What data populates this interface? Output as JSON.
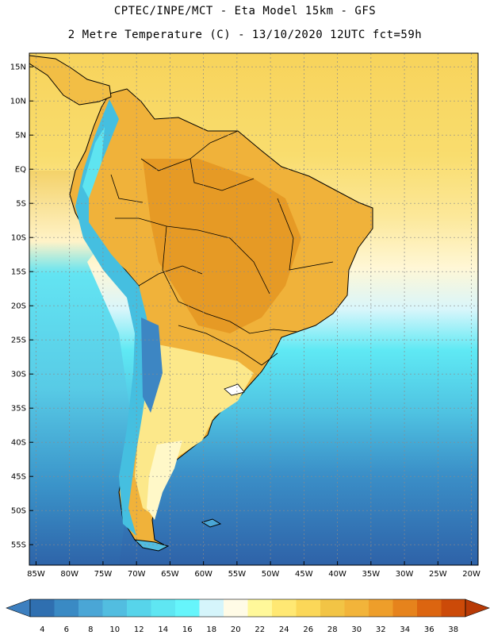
{
  "header": {
    "line1": "CPTEC/INPE/MCT  -   Eta Model 15km  -  GFS",
    "line2": "2 Metre Temperature (C) - 13/10/2020 12UTC fct=59h"
  },
  "axes": {
    "lat_labels": [
      "15N",
      "10N",
      "5N",
      "EQ",
      "5S",
      "10S",
      "15S",
      "20S",
      "25S",
      "30S",
      "35S",
      "40S",
      "45S",
      "50S",
      "55S"
    ],
    "lat_values": [
      15,
      10,
      5,
      0,
      -5,
      -10,
      -15,
      -20,
      -25,
      -30,
      -35,
      -40,
      -45,
      -50,
      -55
    ],
    "lon_labels": [
      "85W",
      "80W",
      "75W",
      "70W",
      "65W",
      "60W",
      "55W",
      "50W",
      "45W",
      "40W",
      "35W",
      "30W",
      "25W",
      "20W"
    ],
    "lon_values": [
      -85,
      -80,
      -75,
      -70,
      -65,
      -60,
      -55,
      -50,
      -45,
      -40,
      -35,
      -30,
      -25,
      -20
    ],
    "lat_range": [
      -58,
      17
    ],
    "lon_range": [
      -86,
      -19
    ]
  },
  "colorbar": {
    "labels": [
      "4",
      "6",
      "8",
      "10",
      "12",
      "14",
      "16",
      "18",
      "20",
      "22",
      "24",
      "26",
      "28",
      "30",
      "32",
      "34",
      "36",
      "38"
    ],
    "colors": [
      "#3d7fbf",
      "#2f6fb0",
      "#3a8ac4",
      "#4aa6d6",
      "#52bde0",
      "#57d4ea",
      "#5fe6f2",
      "#66f5fb",
      "#d5f5fb",
      "#fffbe6",
      "#fff89a",
      "#ffe873",
      "#fbd758",
      "#f2c445",
      "#f2b43a",
      "#ee9e2a",
      "#e6831c",
      "#dc6510",
      "#cc4a08",
      "#b83a06"
    ]
  },
  "colors": {
    "land_outline": "#000000",
    "grid": "#8a8a8a"
  }
}
